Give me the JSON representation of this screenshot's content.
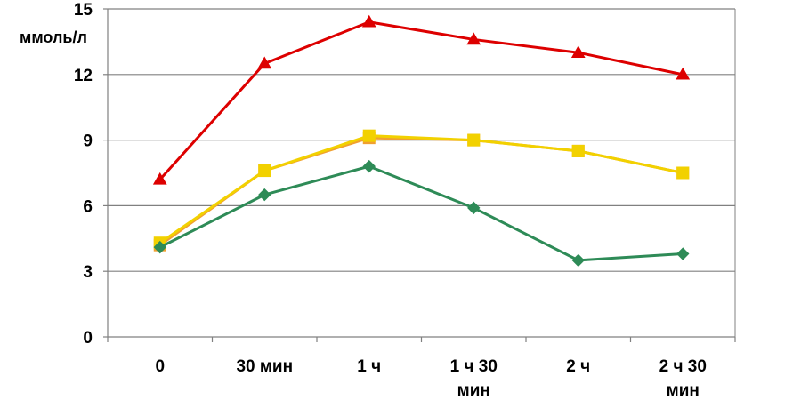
{
  "chart_data": {
    "type": "line",
    "title": "",
    "xlabel": "",
    "ylabel": "ммоль/л",
    "ylim": [
      0,
      15
    ],
    "yticks": [
      0,
      3,
      6,
      9,
      12,
      15
    ],
    "grid": true,
    "legend": "none",
    "categories": [
      [
        "0"
      ],
      [
        "30 мин"
      ],
      [
        "1 ч"
      ],
      [
        "1 ч 30",
        "мин"
      ],
      [
        "2 ч"
      ],
      [
        "2 ч 30",
        "мин"
      ]
    ],
    "series": [
      {
        "name": "red",
        "color": "#dd0000",
        "marker": "triangle",
        "values": [
          7.2,
          12.5,
          14.4,
          13.6,
          13.0,
          12.0
        ]
      },
      {
        "name": "orange",
        "color": "#f0a030",
        "marker": "square",
        "values": [
          4.2,
          7.6,
          9.1,
          9.0,
          8.5,
          7.5
        ]
      },
      {
        "name": "yellow",
        "color": "#f2d100",
        "marker": "square",
        "values": [
          4.3,
          7.6,
          9.2,
          9.0,
          8.5,
          7.5
        ]
      },
      {
        "name": "green",
        "color": "#2e8b57",
        "marker": "diamond",
        "values": [
          4.1,
          6.5,
          7.8,
          5.9,
          3.5,
          3.8
        ]
      }
    ]
  }
}
